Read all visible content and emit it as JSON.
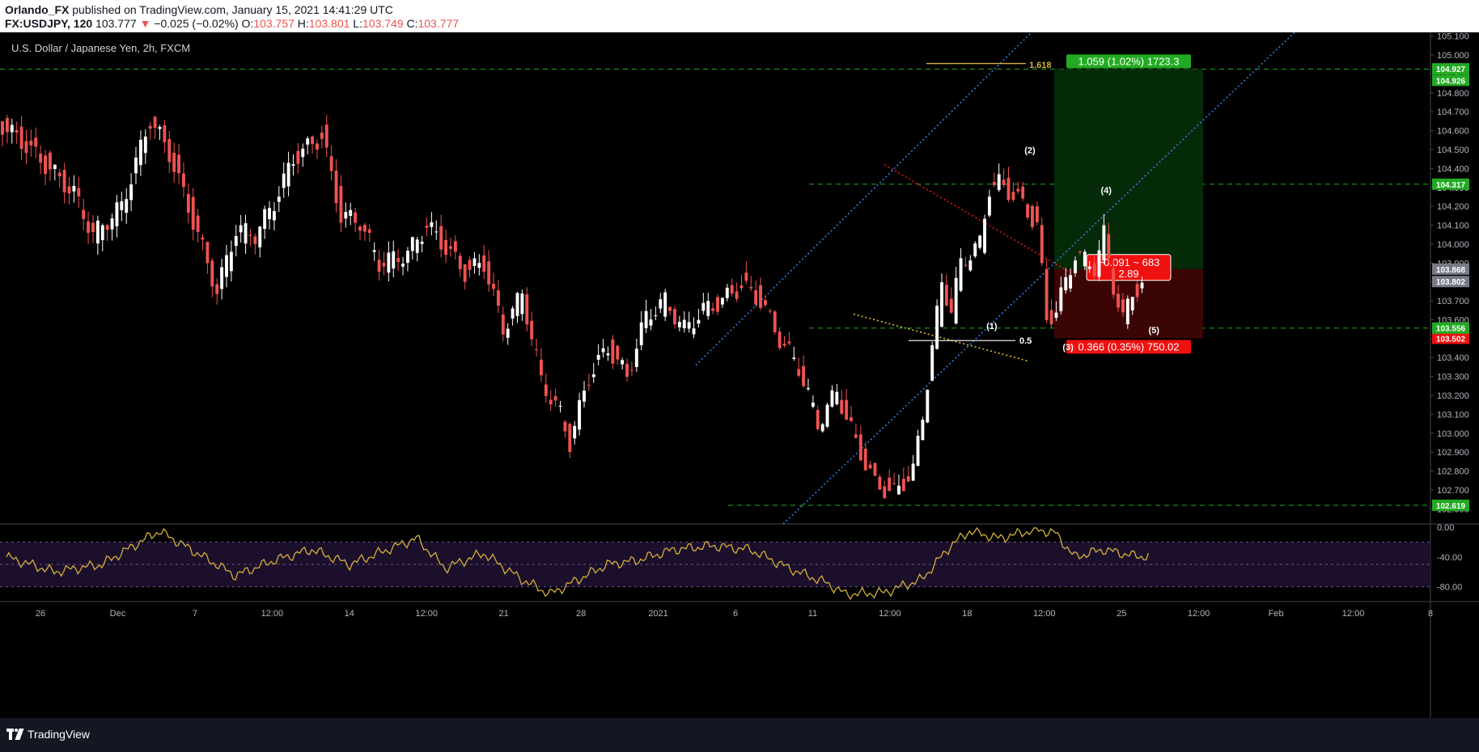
{
  "header": {
    "author": "Orlando_FX",
    "published": "published on TradingView.com, January 15, 2021 14:41:29 UTC",
    "symbol": "FX:USDJPY, 120",
    "last": "103.777",
    "change": "−0.025 (−0.02%)",
    "o_label": "O:",
    "o": "103.757",
    "h_label": "H:",
    "h": "103.801",
    "l_label": "L:",
    "l": "103.749",
    "c_label": "C:",
    "c": "103.777"
  },
  "footer": {
    "brand": "TradingView"
  },
  "colors": {
    "bg": "#000000",
    "up": "#ffffff",
    "down": "#ef5350",
    "green": "#22ab22",
    "red": "#ef1010",
    "rsi": "#d4b03a",
    "channel": "#2f7fe0"
  },
  "chart_data": {
    "type": "candlestick",
    "title": "U.S. Dollar / Japanese Yen, 2h, FXCM",
    "y_ticks": [
      "105.100",
      "105.000",
      "104.900",
      "104.800",
      "104.700",
      "104.600",
      "104.500",
      "104.400",
      "104.300",
      "104.200",
      "104.100",
      "104.000",
      "103.900",
      "103.800",
      "103.700",
      "103.600",
      "103.500",
      "103.400",
      "103.300",
      "103.200",
      "103.100",
      "103.000",
      "102.900",
      "102.800",
      "102.700",
      "102.600"
    ],
    "x_ticks": [
      "26",
      "Dec",
      "7",
      "12:00",
      "14",
      "12:00",
      "21",
      "28",
      "2021",
      "6",
      "11",
      "12:00",
      "18",
      "12:00",
      "25",
      "12:00",
      "Feb",
      "12:00",
      "8"
    ],
    "price_path": [
      [
        0,
        104.65
      ],
      [
        3,
        104.52
      ],
      [
        8,
        104.27
      ],
      [
        10,
        104.05
      ],
      [
        13,
        104.2
      ],
      [
        16,
        104.66
      ],
      [
        18,
        104.48
      ],
      [
        21,
        104.05
      ],
      [
        23,
        103.75
      ],
      [
        25,
        104.08
      ],
      [
        27,
        104.05
      ],
      [
        29,
        104.22
      ],
      [
        31,
        104.45
      ],
      [
        34,
        104.57
      ],
      [
        36,
        104.15
      ],
      [
        38,
        104.12
      ],
      [
        40,
        103.9
      ],
      [
        43,
        103.95
      ],
      [
        45,
        104.1
      ],
      [
        47,
        103.98
      ],
      [
        49,
        103.85
      ],
      [
        51,
        103.9
      ],
      [
        53,
        103.55
      ],
      [
        55,
        103.74
      ],
      [
        57,
        103.28
      ],
      [
        59,
        103.1
      ],
      [
        60,
        102.95
      ],
      [
        62,
        103.3
      ],
      [
        64,
        103.45
      ],
      [
        66,
        103.3
      ],
      [
        68,
        103.62
      ],
      [
        70,
        103.7
      ],
      [
        72,
        103.55
      ],
      [
        74,
        103.65
      ],
      [
        76,
        103.7
      ],
      [
        78,
        103.78
      ],
      [
        80,
        103.7
      ],
      [
        82,
        103.5
      ],
      [
        84,
        103.35
      ],
      [
        86,
        103.05
      ],
      [
        88,
        103.22
      ],
      [
        90,
        102.95
      ],
      [
        92,
        102.73
      ],
      [
        94,
        102.68
      ],
      [
        96,
        102.8
      ],
      [
        97,
        103.1
      ],
      [
        98,
        103.45
      ],
      [
        99,
        103.8
      ],
      [
        100,
        103.65
      ],
      [
        101,
        103.9
      ],
      [
        103,
        104.0
      ],
      [
        104,
        104.3
      ],
      [
        105,
        104.32
      ],
      [
        107,
        104.24
      ],
      [
        109,
        104.1
      ],
      [
        110,
        103.6
      ],
      [
        111,
        103.65
      ],
      [
        113,
        103.95
      ],
      [
        115,
        103.88
      ],
      [
        116,
        104.05
      ],
      [
        117,
        103.78
      ],
      [
        118,
        103.6
      ],
      [
        119,
        103.75
      ],
      [
        120,
        103.78
      ]
    ],
    "levels": [
      {
        "name": "level-104.926",
        "value": 104.926,
        "label": "104.926",
        "color": "#22ab22"
      },
      {
        "name": "level-104.317",
        "value": 104.317,
        "label": "104.317",
        "color": "#22ab22"
      },
      {
        "name": "level-103.556",
        "value": 103.556,
        "label": "103.556",
        "color": "#22ab22"
      },
      {
        "name": "level-102.619",
        "value": 102.619,
        "label": "102.619",
        "color": "#22ab22"
      }
    ],
    "axis_badges": [
      {
        "value": 104.927,
        "label": "104.927",
        "color": "#22ab22"
      },
      {
        "value": 103.868,
        "label": "103.868",
        "color": "#787b86"
      },
      {
        "value": 103.802,
        "label": "103.802",
        "color": "#787b86"
      },
      {
        "value": 103.502,
        "label": "103.502",
        "color": "#ef1010"
      }
    ],
    "wave_labels": [
      {
        "label": "(1)",
        "price": 103.55,
        "bar": 104
      },
      {
        "label": "(2)",
        "price": 104.48,
        "bar": 108
      },
      {
        "label": "(3)",
        "price": 103.44,
        "bar": 112
      },
      {
        "label": "(4)",
        "price": 104.27,
        "bar": 116
      },
      {
        "label": "(5)",
        "price": 103.53,
        "bar": 121
      }
    ],
    "fib_labels": [
      {
        "label": "1.618",
        "price": 104.95
      },
      {
        "label": "0.5",
        "price": 103.49
      }
    ],
    "position": {
      "entry": 103.868,
      "target": 104.926,
      "stop": 103.502,
      "target_text": "1.059 (1.02%) 1723.3",
      "stop_text": "0.366 (0.35%) 750.02",
      "mid_text_1": "−0.091 ~ 683",
      "mid_text_2": "2.89"
    },
    "rsi": {
      "y_ticks": [
        "0.00",
        "-40.00",
        "-80.00"
      ],
      "ylim": [
        -100,
        0
      ],
      "band": [
        -80,
        -20
      ],
      "path": [
        [
          0,
          -40
        ],
        [
          5,
          -60
        ],
        [
          10,
          -50
        ],
        [
          16,
          -5
        ],
        [
          20,
          -35
        ],
        [
          24,
          -65
        ],
        [
          28,
          -45
        ],
        [
          32,
          -30
        ],
        [
          36,
          -50
        ],
        [
          40,
          -30
        ],
        [
          43,
          -15
        ],
        [
          46,
          -55
        ],
        [
          50,
          -35
        ],
        [
          54,
          -70
        ],
        [
          57,
          -90
        ],
        [
          60,
          -70
        ],
        [
          63,
          -50
        ],
        [
          66,
          -45
        ],
        [
          70,
          -30
        ],
        [
          74,
          -25
        ],
        [
          78,
          -30
        ],
        [
          82,
          -55
        ],
        [
          86,
          -75
        ],
        [
          88,
          -90
        ],
        [
          92,
          -88
        ],
        [
          96,
          -70
        ],
        [
          99,
          -25
        ],
        [
          101,
          -5
        ],
        [
          104,
          -15
        ],
        [
          108,
          -3
        ],
        [
          110,
          -8
        ],
        [
          112,
          -40
        ],
        [
          115,
          -30
        ],
        [
          118,
          -38
        ],
        [
          120,
          -40
        ]
      ]
    }
  }
}
